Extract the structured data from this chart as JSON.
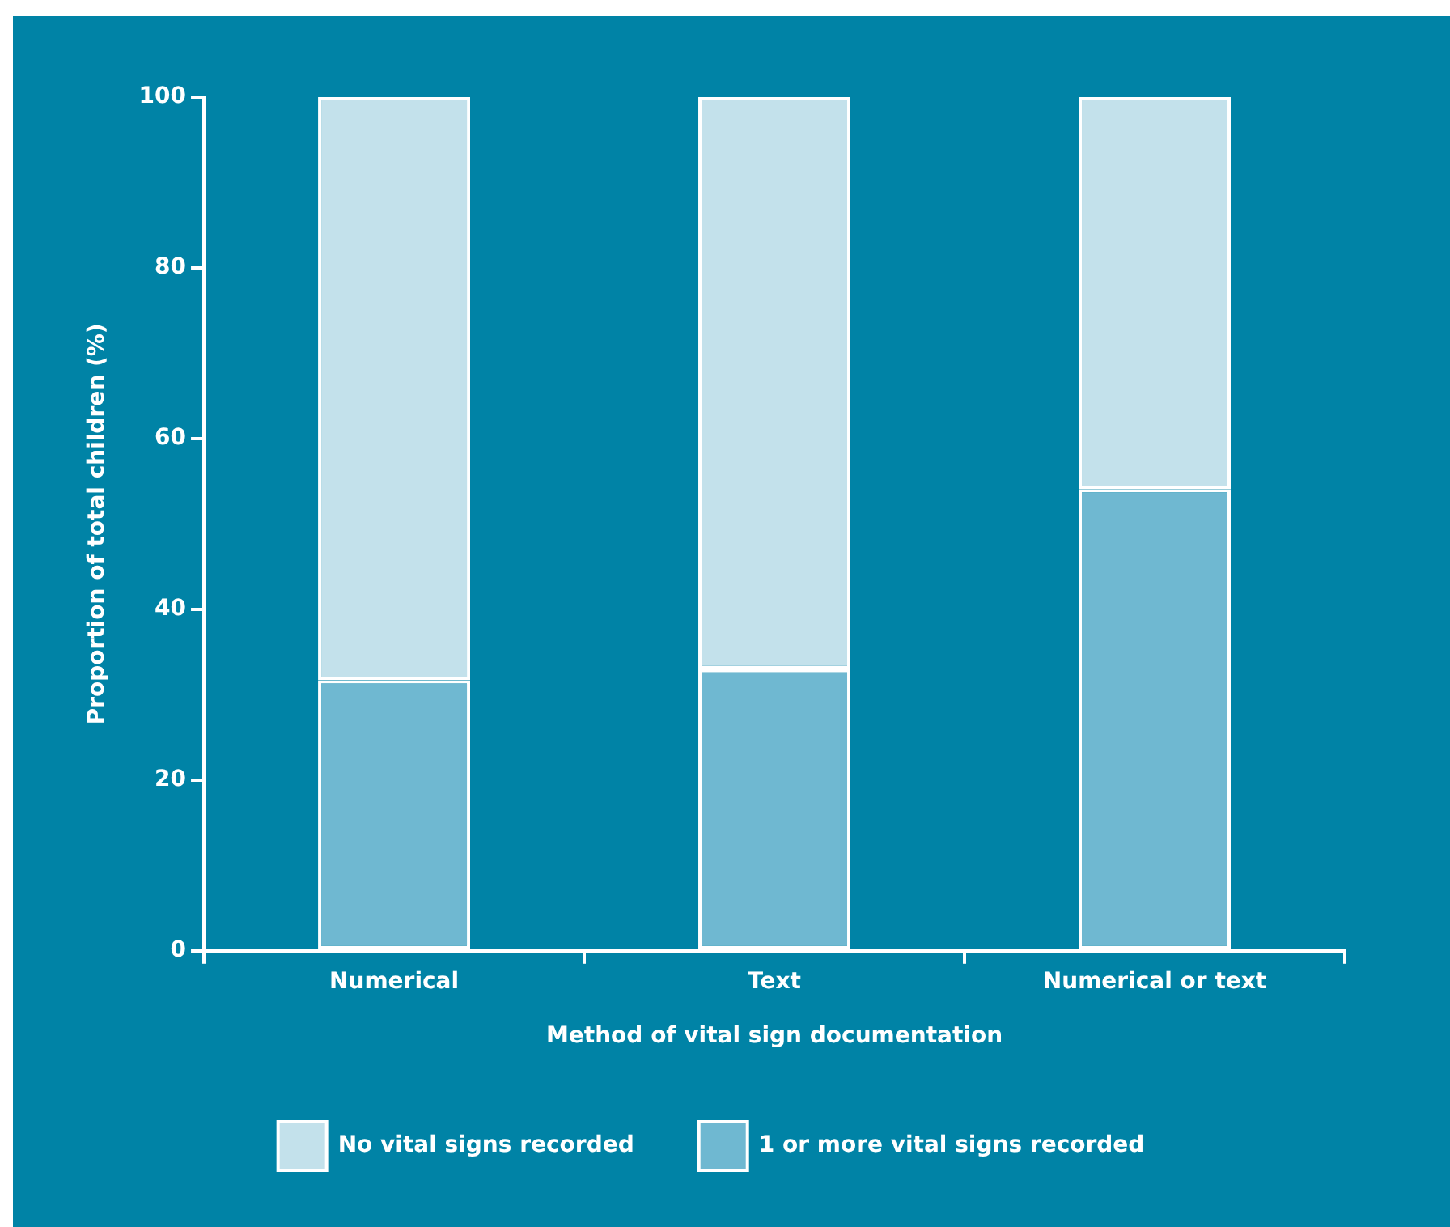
{
  "chart_data": {
    "type": "bar",
    "stacked": true,
    "xlabel": "Method of vital sign documentation",
    "ylabel": "Proportion of total children (%)",
    "categories": [
      "Numerical",
      "Text",
      "Numerical or text"
    ],
    "series": [
      {
        "name": "1 or more vital signs recorded",
        "color": "#6fb8d1",
        "values": [
          31.7,
          33.0,
          54.1
        ]
      },
      {
        "name": "No vital signs recorded",
        "color": "#c3e1eb",
        "values": [
          68.3,
          67.0,
          45.9
        ]
      }
    ],
    "ylim": [
      0,
      100
    ],
    "yticks": [
      0,
      20,
      40,
      60,
      80,
      100
    ],
    "grid": false,
    "legend": "bottom"
  }
}
